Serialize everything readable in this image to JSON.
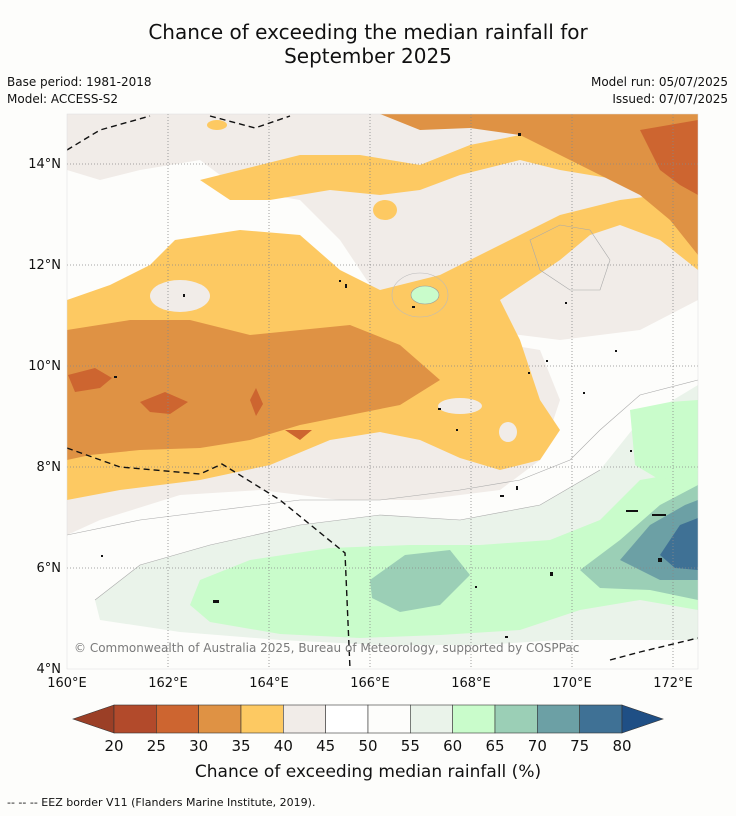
{
  "title_line1": "Chance of exceeding the median rainfall for",
  "title_line2": "September 2025",
  "base_period": "Base period: 1981-2018",
  "model": "Model: ACCESS-S2",
  "model_run": "Model run: 05/07/2025",
  "issued": "Issued: 07/07/2025",
  "x_ticks": [
    "160°E",
    "162°E",
    "164°E",
    "166°E",
    "168°E",
    "170°E",
    "172°E"
  ],
  "y_ticks": [
    "14°N",
    "12°N",
    "10°N",
    "8°N",
    "6°N",
    "4°N"
  ],
  "copyright": "© Commonwealth of Australia 2025, Bureau of Meteorology, supported by COSPPac",
  "colorbar": {
    "labels": [
      "20",
      "25",
      "30",
      "35",
      "40",
      "45",
      "50",
      "55",
      "60",
      "65",
      "70",
      "75",
      "80"
    ],
    "colors": [
      "#b24a2b",
      "#cd6530",
      "#df9244",
      "#fdc962",
      "#f1ece8",
      "#ffffff",
      "#fdfdfb",
      "#eaf3ea",
      "#c9fccb",
      "#9bcfb6",
      "#6ca0a5",
      "#3f7195"
    ],
    "under_color": "#9b3f26",
    "over_color": "#1f4f85",
    "title": "Chance of exceeding median rainfall (%)"
  },
  "footnote": "--  --  -- EEZ border V11 (Flanders Marine Institute, 2019).",
  "map": {
    "lon_range": [
      160,
      172.4
    ],
    "lat_range": [
      4,
      15
    ],
    "legend_scale": "20–80 %"
  }
}
